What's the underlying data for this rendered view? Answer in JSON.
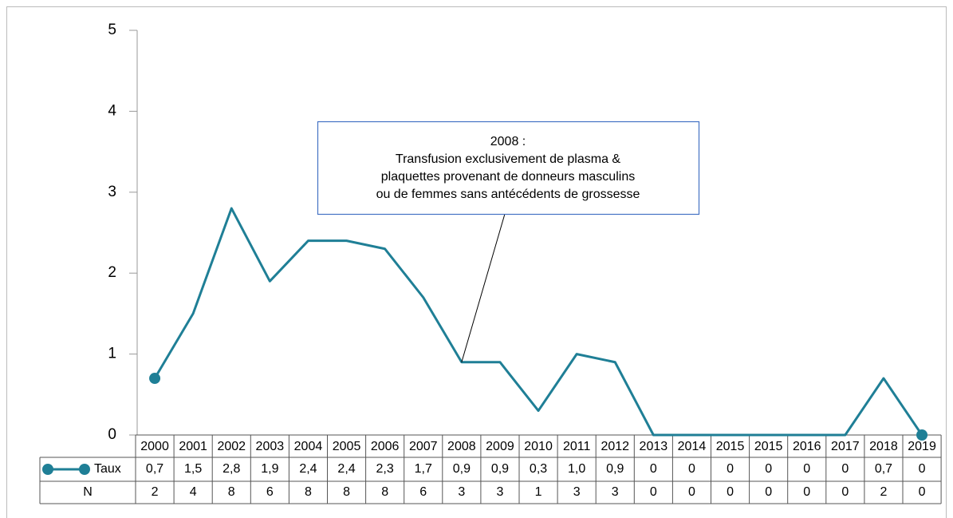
{
  "chart_data": {
    "type": "line",
    "categories": [
      "2000",
      "2001",
      "2002",
      "2003",
      "2004",
      "2005",
      "2006",
      "2007",
      "2008",
      "2009",
      "2010",
      "2011",
      "2012",
      "2013",
      "2014",
      "2015",
      "2015",
      "2016",
      "2017",
      "2018",
      "2019"
    ],
    "series": [
      {
        "name": "Taux",
        "color": "#1f7f96",
        "values": [
          0.7,
          1.5,
          2.8,
          1.9,
          2.4,
          2.4,
          2.3,
          1.7,
          0.9,
          0.9,
          0.3,
          1.0,
          0.9,
          0,
          0,
          0,
          0,
          0,
          0,
          0.7,
          0
        ],
        "value_labels": [
          "0,7",
          "1,5",
          "2,8",
          "1,9",
          "2,4",
          "2,4",
          "2,3",
          "1,7",
          "0,9",
          "0,9",
          "0,3",
          "1,0",
          "0,9",
          "0",
          "0",
          "0",
          "0",
          "0",
          "0",
          "0,7",
          "0"
        ]
      }
    ],
    "table_rows": [
      {
        "name": "N",
        "values": [
          2,
          4,
          8,
          6,
          8,
          8,
          8,
          6,
          3,
          3,
          1,
          3,
          3,
          0,
          0,
          0,
          0,
          0,
          0,
          2,
          0
        ]
      }
    ],
    "ylim": [
      0,
      5
    ],
    "yticks": [
      0,
      1,
      2,
      3,
      4,
      5
    ],
    "annotation": {
      "category": "2008",
      "lines": [
        "2008 :",
        "Transfusion exclusivement de plasma &",
        "plaquettes provenant de donneurs  masculins",
        "ou de femmes sans antécédents de grossesse"
      ]
    }
  }
}
